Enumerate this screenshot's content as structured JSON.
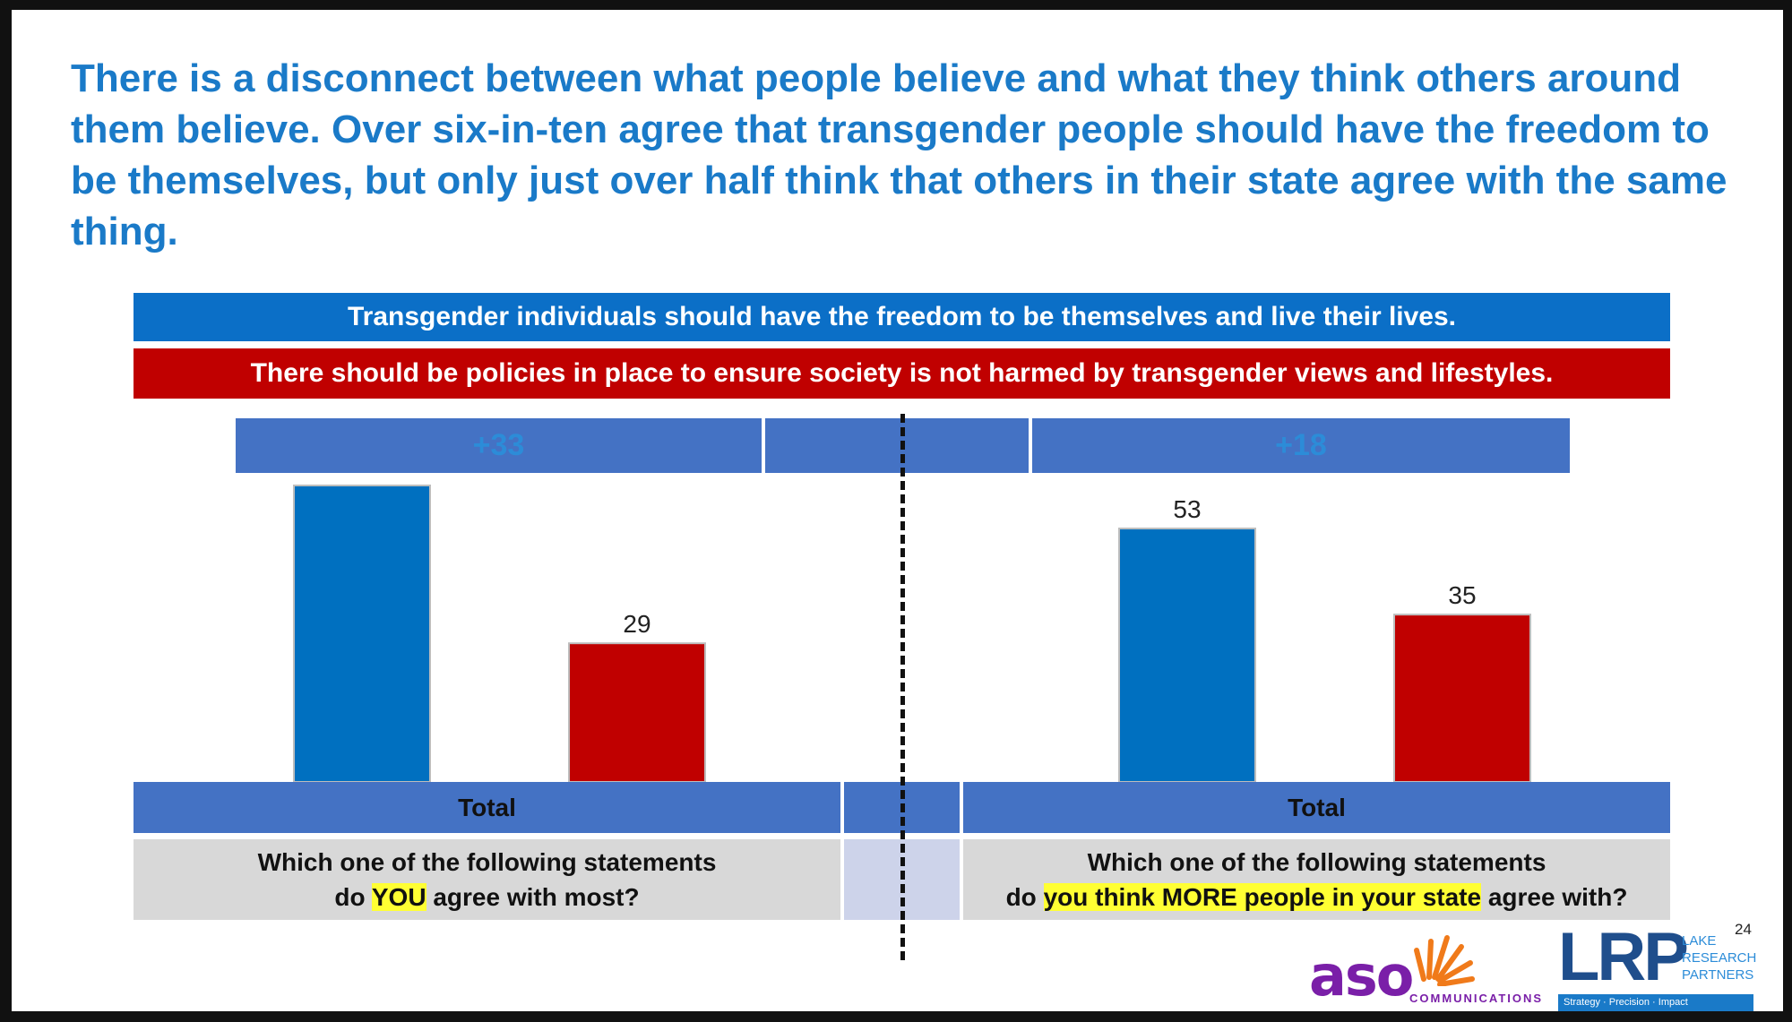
{
  "headline": "There is a disconnect between what people believe and what they think others around them believe. Over six-in-ten agree that transgender people should have the freedom to be themselves, but only just over half think that others in their state agree with the same thing.",
  "statements": {
    "blue": "Transgender individuals should have the freedom to be themselves and live their lives.",
    "red": "There should be policies in place to ensure society is not harmed by transgender views and lifestyles."
  },
  "colors": {
    "blue": "#0070c0",
    "red": "#c00000",
    "band_blue": "#0b6fc7",
    "header_blue": "#4472c4",
    "headline": "#1a7ac8",
    "highlight": "#ffff33"
  },
  "chart_data": [
    {
      "type": "bar",
      "categories": [
        "Total"
      ],
      "net_label": "+33",
      "series": [
        {
          "name": "Transgender individuals should have the freedom to be themselves and live their lives.",
          "values": [
            62
          ],
          "color": "#0070c0",
          "label": ""
        },
        {
          "name": "There should be policies in place to ensure society is not harmed by transgender views and lifestyles.",
          "values": [
            29
          ],
          "color": "#c00000",
          "label": "29"
        }
      ],
      "category_label": "Total",
      "question_line1": "Which one of the following statements",
      "question_line2_pre": "do ",
      "question_line2_highlight": "YOU",
      "question_line2_post": " agree with most?",
      "ylim": [
        0,
        70
      ]
    },
    {
      "type": "bar",
      "categories": [
        "Total"
      ],
      "net_label": "+18",
      "series": [
        {
          "name": "Transgender individuals should have the freedom to be themselves and live their lives.",
          "values": [
            53
          ],
          "color": "#0070c0",
          "label": "53"
        },
        {
          "name": "There should be policies in place to ensure society is not harmed by transgender views and lifestyles.",
          "values": [
            35
          ],
          "color": "#c00000",
          "label": "35"
        }
      ],
      "category_label": "Total",
      "question_line1": "Which one of the following statements",
      "question_line2_pre": "do ",
      "question_line2_highlight": "you think MORE people in your state",
      "question_line2_post": " agree with?",
      "ylim": [
        0,
        70
      ]
    }
  ],
  "footer": {
    "page_number": "24",
    "aso_logo": "aso",
    "aso_sub": "COMMUNICATIONS",
    "lrp_logo": "LRP",
    "lrp_line1": "LAKE",
    "lrp_line2": "RESEARCH",
    "lrp_line3": "PARTNERS",
    "lrp_tagline": "Strategy · Precision · Impact"
  }
}
